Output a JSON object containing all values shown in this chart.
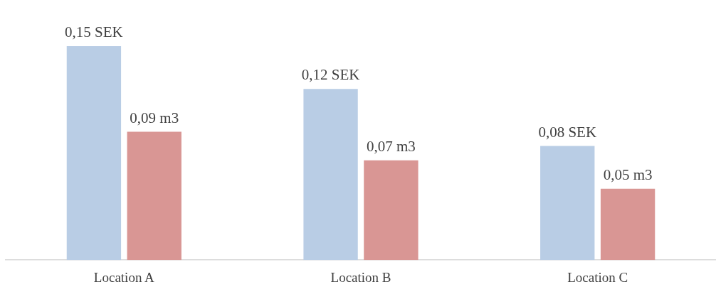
{
  "chart_data": {
    "type": "bar",
    "categories": [
      "Location A",
      "Location B",
      "Location C"
    ],
    "series": [
      {
        "color": "#b9cde5",
        "values": [
          0.15,
          0.12,
          0.08
        ],
        "value_labels": [
          "0,15 SEK",
          "0,12 SEK",
          "0,08 SEK"
        ]
      },
      {
        "color": "#d99694",
        "values": [
          0.09,
          0.07,
          0.05
        ],
        "value_labels": [
          "0,09 m3",
          "0,07 m3",
          "0,05 m3"
        ]
      }
    ],
    "grid": false,
    "legend": false
  }
}
